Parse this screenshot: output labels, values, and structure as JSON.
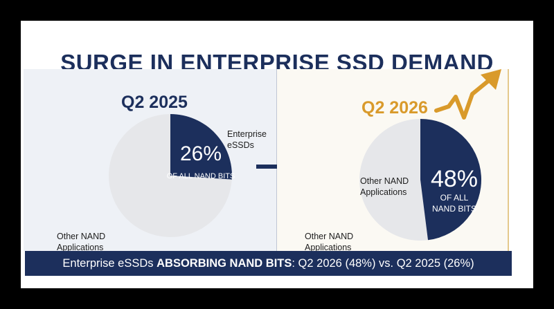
{
  "title": "SURGE IN ENTERPRISE SSD DEMAND",
  "colors": {
    "navy": "#1c2f5c",
    "gold": "#d99a2b",
    "pie_light": "#e6e7ea",
    "panel_left_bg": "#eef1f6",
    "panel_right_bg": "#fbf9f3"
  },
  "chart_data": [
    {
      "type": "pie",
      "title": "Q2 2025",
      "slices": [
        {
          "label": "Enterprise eSSDs",
          "value": 26,
          "value_text": "26%",
          "sub_text": "OF ALL NAND BITS"
        },
        {
          "label": "Other NAND Applications",
          "value": 74
        }
      ]
    },
    {
      "type": "pie",
      "title": "Q2 2026",
      "slices": [
        {
          "label": "Enterprise eSSDs",
          "value": 48,
          "value_text": "48%",
          "sub_text_line1": "OF ALL",
          "sub_text_line2": "NAND BITS"
        },
        {
          "label": "Other NAND Applications",
          "value": 52
        }
      ]
    }
  ],
  "labels": {
    "left_essd_line1": "Enterprise",
    "left_essd_line2": "eSSDs",
    "left_other_line1": "Other NAND",
    "left_other_line2": "Applications",
    "right_other_inner_line1": "Other NAND",
    "right_other_inner_line2": "Applications",
    "right_other_outer_line1": "Other NAND",
    "right_other_outer_line2": "Applications"
  },
  "icons": {
    "transition": "right-arrow-icon",
    "trend": "trend-up-arrow-icon"
  },
  "banner": {
    "part1": "Enterprise eSSDs ",
    "bold": "ABSORBING NAND BITS",
    "part2": ": Q2 2026 (48%) vs. Q2 2025 (26%)"
  }
}
